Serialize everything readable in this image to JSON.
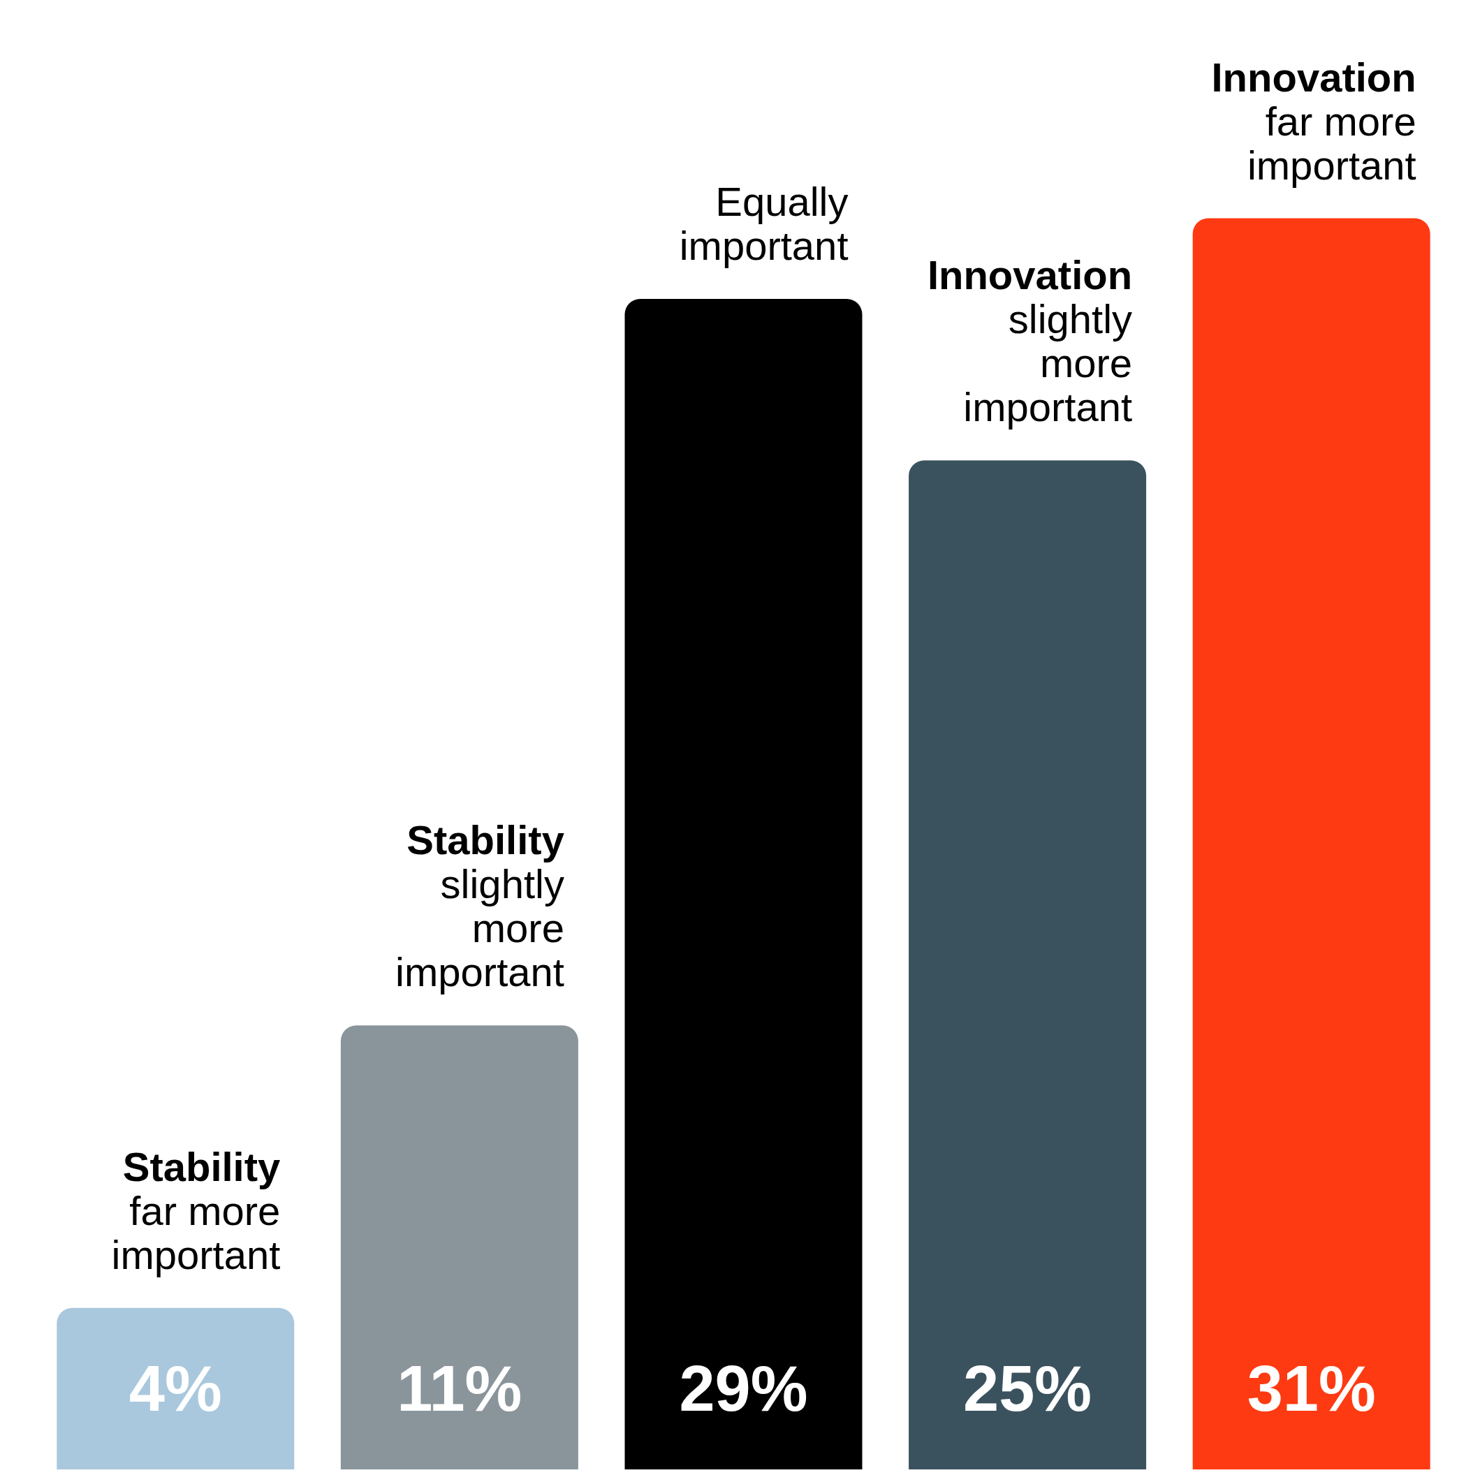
{
  "chart_data": {
    "type": "bar",
    "categories": [
      "Stability\nfar more\nimportant",
      "Stability\nslightly\nmore\nimportant",
      "Equally\nimportant",
      "Innovation\nslightly\nmore\nimportant",
      "Innovation\nfar more\nimportant"
    ],
    "values": [
      4,
      11,
      29,
      25,
      31
    ],
    "colors": [
      "#a9c8dd",
      "#8a959b",
      "#000000",
      "#3a525e",
      "#fe3a12"
    ],
    "value_labels": [
      "4%",
      "11%",
      "29%",
      "25%",
      "31%"
    ]
  }
}
